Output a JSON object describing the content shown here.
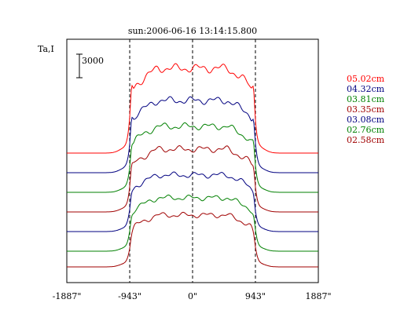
{
  "chart_data": {
    "type": "line",
    "title": "sun:2006-06-16 13:14:15.800",
    "ylabel": "Ta,I",
    "scale_bar_label": "3000",
    "scale_bar_value": 3000,
    "xlim": [
      -1887,
      1887
    ],
    "xticks": [
      {
        "value": -1887,
        "label": "-1887\""
      },
      {
        "value": -943,
        "label": "-943\""
      },
      {
        "value": 0,
        "label": "0\""
      },
      {
        "value": 943,
        "label": "943\""
      },
      {
        "value": 1887,
        "label": "1887\""
      }
    ],
    "vlines": [
      -943,
      0,
      943
    ],
    "grid": false,
    "legend_position": "right",
    "limb_position": 943,
    "series": [
      {
        "name": "05.02cm",
        "color": "#ff0000",
        "baseline": 195,
        "disk_level": 10800
      },
      {
        "name": "04.32cm",
        "color": "#000080",
        "baseline": 220,
        "disk_level": 9200
      },
      {
        "name": "03.81cm",
        "color": "#008000",
        "baseline": 245,
        "disk_level": 8400
      },
      {
        "name": "03.35cm",
        "color": "#a00000",
        "baseline": 270,
        "disk_level": 8000
      },
      {
        "name": "03.08cm",
        "color": "#000080",
        "baseline": 295,
        "disk_level": 7200
      },
      {
        "name": "02.76cm",
        "color": "#008000",
        "baseline": 320,
        "disk_level": 6800
      },
      {
        "name": "02.58cm",
        "color": "#a00000",
        "baseline": 340,
        "disk_level": 6600
      }
    ]
  }
}
